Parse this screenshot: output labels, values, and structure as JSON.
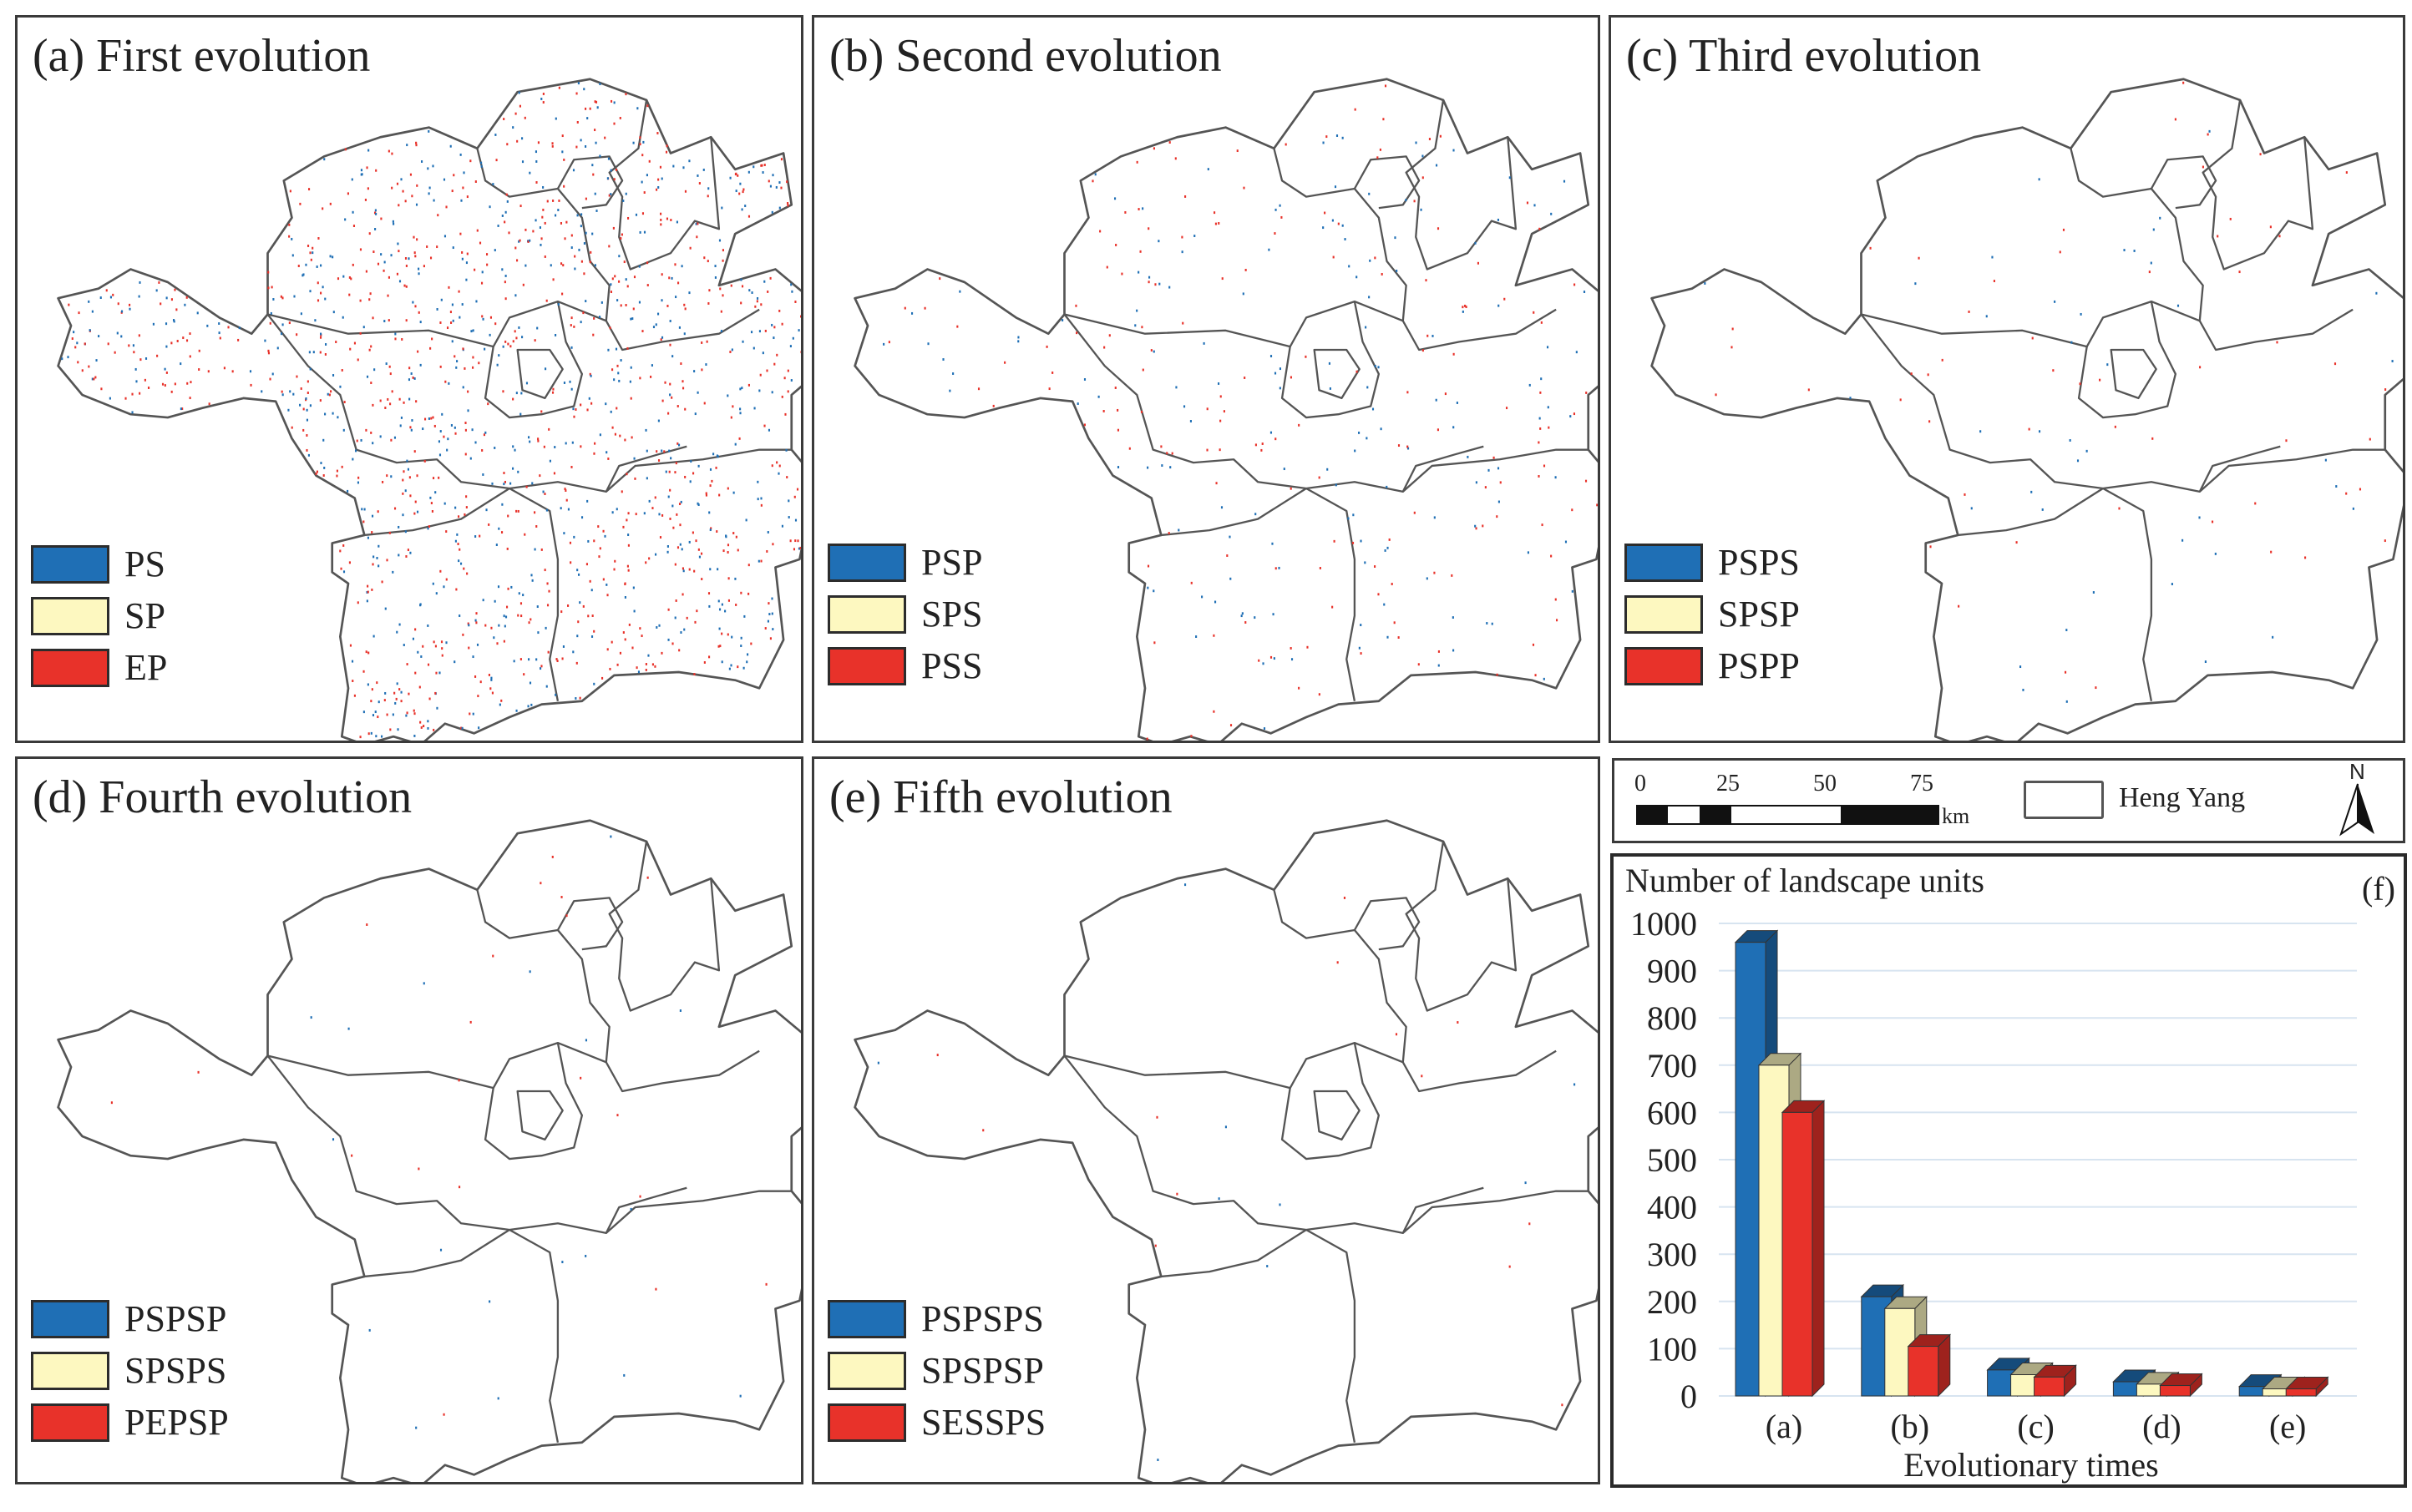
{
  "colors": {
    "blue": "#1f6fb5",
    "yellow": "#fdf8c0",
    "red": "#e8322a",
    "outline": "#555555"
  },
  "panels": [
    {
      "title": "(a) First evolution",
      "legend": [
        "PS",
        "SP",
        "EP"
      ],
      "dots": 1400
    },
    {
      "title": "(b) Second evolution",
      "legend": [
        "PSP",
        "SPS",
        "PSS"
      ],
      "dots": 320
    },
    {
      "title": "(c) Third evolution",
      "legend": [
        "PSPS",
        "SPSP",
        "PSPP"
      ],
      "dots": 95
    },
    {
      "title": "(d) Fourth evolution",
      "legend": [
        "PSPSP",
        "SPSPS",
        "PEPSP"
      ],
      "dots": 38
    },
    {
      "title": "(e) Fifth evolution",
      "legend": [
        "PSPSPS",
        "SPSPSP",
        "SESSPS"
      ],
      "dots": 22
    }
  ],
  "scale": {
    "ticks": [
      "0",
      "25",
      "50",
      "75"
    ],
    "unit": "km",
    "legend_label": "Heng Yang",
    "north": "N"
  },
  "chart_data": {
    "type": "bar",
    "panel_label": "(f)",
    "title": "Number of landscape units",
    "xlabel": "Evolutionary times",
    "categories": [
      "(a)",
      "(b)",
      "(c)",
      "(d)",
      "(e)"
    ],
    "yticks": [
      "0",
      "100",
      "200",
      "300",
      "400",
      "500",
      "600",
      "700",
      "800",
      "900",
      "1000"
    ],
    "ylim": [
      0,
      1000
    ],
    "series": [
      {
        "name": "blue",
        "values": [
          960,
          210,
          55,
          30,
          20
        ]
      },
      {
        "name": "yellow",
        "values": [
          700,
          185,
          45,
          25,
          15
        ]
      },
      {
        "name": "red",
        "values": [
          600,
          105,
          40,
          22,
          15
        ]
      }
    ]
  }
}
